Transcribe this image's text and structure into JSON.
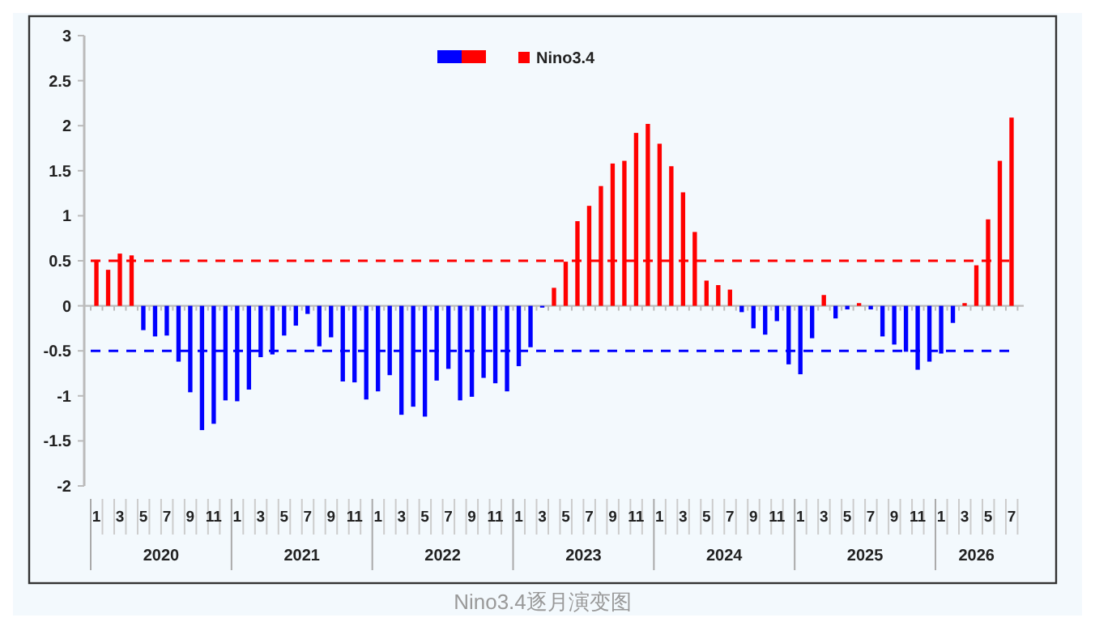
{
  "chart_data": {
    "type": "bar",
    "title": "Nino3.4逐月演变图",
    "categories": [
      "1",
      null,
      "3",
      null,
      "5",
      null,
      "7",
      null,
      "9",
      null,
      "11",
      null,
      "1",
      null,
      "3",
      null,
      "5",
      null,
      "7",
      null,
      "9",
      null,
      "11",
      null,
      "1",
      null,
      "3",
      null,
      "5",
      null,
      "7",
      null,
      "9",
      null,
      "11",
      null,
      "1",
      null,
      "3",
      null,
      "5",
      null,
      "7",
      null,
      "9",
      null,
      "11",
      null,
      "1",
      null,
      "3",
      null,
      "5",
      null,
      "7",
      null,
      "9",
      null,
      "11",
      null,
      "1",
      null,
      "3",
      null,
      "5",
      null,
      "7",
      null,
      "9",
      null,
      "11",
      null,
      "1",
      null,
      "3",
      null,
      "5",
      null,
      "7"
    ],
    "series": [
      {
        "name": "Nino3.4",
        "color": "#ff0000",
        "colors": [
          "#ff0000",
          "#ff0000",
          "#ff0000",
          "#ff0000",
          "#0000ff",
          "#0000ff",
          "#0000ff",
          "#0000ff",
          "#0000ff",
          "#0000ff",
          "#0000ff",
          "#0000ff",
          "#0000ff",
          "#0000ff",
          "#0000ff",
          "#0000ff",
          "#0000ff",
          "#0000ff",
          "#0000ff",
          "#0000ff",
          "#0000ff",
          "#0000ff",
          "#0000ff",
          "#0000ff",
          "#0000ff",
          "#0000ff",
          "#0000ff",
          "#0000ff",
          "#0000ff",
          "#0000ff",
          "#0000ff",
          "#0000ff",
          "#0000ff",
          "#0000ff",
          "#0000ff",
          "#0000ff",
          "#0000ff",
          "#0000ff",
          "#0000ff",
          "#ff0000",
          "#ff0000",
          "#ff0000",
          "#ff0000",
          "#ff0000",
          "#ff0000",
          "#ff0000",
          "#ff0000",
          "#ff0000",
          "#ff0000",
          "#ff0000",
          "#ff0000",
          "#ff0000",
          "#ff0000",
          "#ff0000",
          "#ff0000",
          "#0000ff",
          "#0000ff",
          "#0000ff",
          "#0000ff",
          "#0000ff",
          "#0000ff",
          "#0000ff",
          "#ff0000",
          "#0000ff",
          "#0000ff",
          "#ff0000",
          "#0000ff",
          "#0000ff",
          "#0000ff",
          "#0000ff",
          "#0000ff",
          "#0000ff",
          "#0000ff",
          "#0000ff",
          "#ff0000",
          "#ff0000",
          "#ff0000",
          "#ff0000",
          "#ff0000"
        ],
        "values": [
          0.51,
          0.4,
          0.58,
          0.56,
          -0.27,
          -0.34,
          -0.33,
          -0.62,
          -0.96,
          -1.38,
          -1.31,
          -1.05,
          -1.06,
          -0.93,
          -0.57,
          -0.54,
          -0.33,
          -0.22,
          -0.09,
          -0.45,
          -0.35,
          -0.84,
          -0.85,
          -1.04,
          -0.95,
          -0.77,
          -1.21,
          -1.12,
          -1.23,
          -0.83,
          -0.7,
          -1.05,
          -1.01,
          -0.8,
          -0.86,
          -0.95,
          -0.67,
          -0.46,
          -0.02,
          0.2,
          0.49,
          0.94,
          1.11,
          1.33,
          1.58,
          1.61,
          1.92,
          2.02,
          1.8,
          1.55,
          1.26,
          0.82,
          0.28,
          0.23,
          0.18,
          -0.07,
          -0.25,
          -0.32,
          -0.17,
          -0.65,
          -0.76,
          -0.36,
          0.12,
          -0.14,
          -0.04,
          0.03,
          -0.04,
          -0.34,
          -0.43,
          -0.51,
          -0.71,
          -0.62,
          -0.53,
          -0.19,
          0.03,
          0.45,
          0.96,
          1.61,
          2.09
        ]
      }
    ],
    "annotations": [
      "2020",
      "2021",
      "2022",
      "2023",
      "2024",
      "2025",
      "2026"
    ],
    "ylim": [
      -2,
      3
    ],
    "yticks": [
      -2,
      -1.5,
      -1,
      -0.5,
      0,
      0.5,
      1,
      1.5,
      2,
      2.5,
      3
    ],
    "ref_lines": [
      {
        "axis": "y",
        "value": 0.5,
        "color": "#ff0000",
        "line_style": "dashed"
      },
      {
        "axis": "y",
        "value": -0.5,
        "color": "#0000ff",
        "line_style": "dashed"
      }
    ],
    "legend": "top",
    "grid": false
  }
}
